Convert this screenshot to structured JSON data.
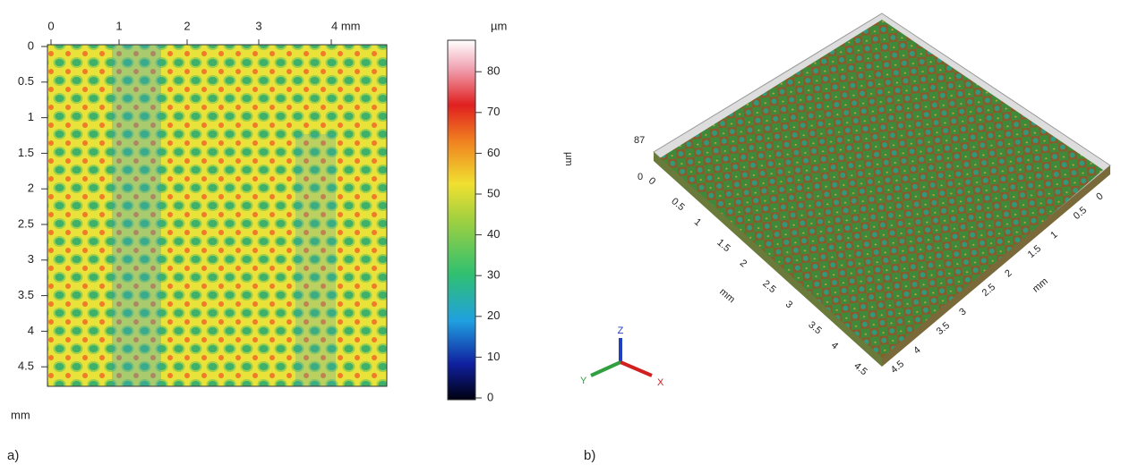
{
  "panel_a": {
    "label": "a)",
    "x_ticks": [
      "0",
      "1",
      "2",
      "3",
      "4 mm"
    ],
    "y_ticks": [
      "0",
      "0.5",
      "1",
      "1.5",
      "2",
      "2.5",
      "3",
      "3.5",
      "4",
      "4.5"
    ],
    "y_unit": "mm",
    "colorbar": {
      "unit": "µm",
      "ticks": [
        "0",
        "10",
        "20",
        "30",
        "40",
        "50",
        "60",
        "70",
        "80"
      ]
    }
  },
  "panel_b": {
    "label": "b)",
    "z_unit": "µm",
    "z_max": "87",
    "z_min": "0",
    "left_axis": {
      "ticks": [
        "0",
        "0.5",
        "1",
        "1.5",
        "2",
        "2.5",
        "3",
        "3.5",
        "4",
        "4.5"
      ],
      "unit": "mm"
    },
    "right_axis": {
      "ticks": [
        "4.5",
        "4",
        "3.5",
        "3",
        "2.5",
        "2",
        "1.5",
        "1",
        "0.5",
        "0"
      ],
      "unit": "mm"
    },
    "triad": {
      "z": "Z",
      "y": "Y",
      "x": "X"
    }
  }
}
